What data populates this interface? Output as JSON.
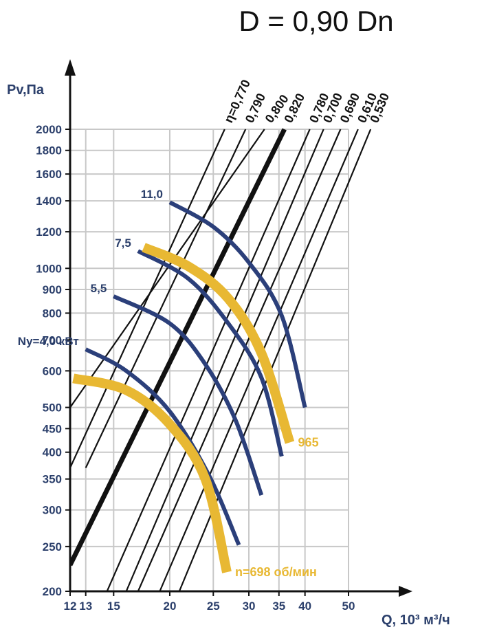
{
  "chart_data": {
    "type": "line",
    "title": "D = 0,90 Dn",
    "xlabel": "Q, 10³ м³/ч",
    "ylabel": "Pv,Па",
    "xscale": "log",
    "yscale": "log",
    "xlim": [
      12,
      50
    ],
    "ylim": [
      200,
      2000
    ],
    "grid": true,
    "x_ticks": [
      12,
      13,
      15,
      20,
      25,
      30,
      35,
      40,
      50
    ],
    "y_ticks": [
      200,
      250,
      300,
      350,
      400,
      450,
      500,
      600,
      700,
      800,
      900,
      1000,
      1200,
      1400,
      1600,
      1800,
      2000
    ],
    "efficiency_lines": [
      {
        "label": "η=0,770",
        "bold": false,
        "points": [
          [
            12,
            370
          ],
          [
            26.5,
            2000
          ]
        ]
      },
      {
        "label": "0,790",
        "bold": false,
        "points": [
          [
            13,
            370
          ],
          [
            29.5,
            2000
          ]
        ]
      },
      {
        "label": "0,800",
        "bold": false,
        "points": [
          [
            12,
            500
          ],
          [
            32.5,
            2000
          ]
        ]
      },
      {
        "label": "0,820",
        "bold": true,
        "points": [
          [
            12,
            228
          ],
          [
            36,
            2000
          ]
        ]
      },
      {
        "label": "0,780",
        "bold": false,
        "points": [
          [
            14.5,
            200
          ],
          [
            41,
            2000
          ]
        ]
      },
      {
        "label": "0,700",
        "bold": false,
        "points": [
          [
            16,
            200
          ],
          [
            44,
            2000
          ]
        ]
      },
      {
        "label": "0,690",
        "bold": false,
        "points": [
          [
            17,
            200
          ],
          [
            48,
            2000
          ]
        ]
      },
      {
        "label": "0,610",
        "bold": false,
        "points": [
          [
            19,
            200
          ],
          [
            52.5,
            2000
          ]
        ]
      },
      {
        "label": "0,530",
        "bold": false,
        "points": [
          [
            21,
            200
          ],
          [
            56,
            2000
          ]
        ]
      }
    ],
    "power_curves": [
      {
        "label": "Ny=4,0 кВт",
        "points": [
          [
            13,
            668
          ],
          [
            16,
            600
          ],
          [
            20,
            490
          ],
          [
            24.5,
            355
          ],
          [
            28.5,
            252
          ]
        ]
      },
      {
        "label": "5,5",
        "points": [
          [
            15,
            870
          ],
          [
            20,
            760
          ],
          [
            24,
            620
          ],
          [
            28,
            470
          ],
          [
            32,
            323
          ]
        ]
      },
      {
        "label": "7,5",
        "points": [
          [
            17,
            1090
          ],
          [
            22,
            950
          ],
          [
            27,
            760
          ],
          [
            32,
            580
          ],
          [
            35.5,
            392
          ]
        ]
      },
      {
        "label": "11,0",
        "points": [
          [
            20,
            1390
          ],
          [
            25,
            1230
          ],
          [
            30,
            1030
          ],
          [
            35.5,
            790
          ],
          [
            40,
            500
          ]
        ]
      }
    ],
    "speed_curves": [
      {
        "label": "n=698 об/мин",
        "points": [
          [
            12.2,
            578
          ],
          [
            16,
            545
          ],
          [
            20,
            460
          ],
          [
            24,
            350
          ],
          [
            26.8,
            220
          ]
        ]
      },
      {
        "label": "965",
        "points": [
          [
            17.5,
            1110
          ],
          [
            22,
            1010
          ],
          [
            27,
            860
          ],
          [
            32,
            655
          ],
          [
            37,
            420
          ]
        ]
      }
    ]
  },
  "colors": {
    "axis": "#111111",
    "grid": "#c8c8c8",
    "efficiency_line": "#111111",
    "power_curve": "#2b3f7a",
    "speed_curve": "#e8b833",
    "tick_label": "#2b3f6b"
  }
}
